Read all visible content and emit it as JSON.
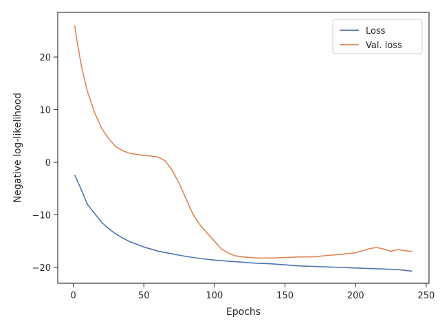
{
  "chart_data": {
    "type": "line",
    "title": "",
    "xlabel": "Epochs",
    "ylabel": "Negative log-likelihood",
    "xlim": [
      -11,
      252
    ],
    "ylim": [
      -23,
      28.5
    ],
    "xticks": [
      0,
      50,
      100,
      150,
      200,
      250
    ],
    "yticks": [
      -20,
      -10,
      0,
      10,
      20
    ],
    "xtick_labels": [
      "0",
      "50",
      "100",
      "150",
      "200",
      "250"
    ],
    "ytick_labels": [
      "−20",
      "−10",
      "0",
      "10",
      "20"
    ],
    "grid": false,
    "legend_position": "top-right",
    "series": [
      {
        "name": "Loss",
        "color": "#4c72b0",
        "points": [
          [
            1,
            -2.4
          ],
          [
            5,
            -4.8
          ],
          [
            10,
            -8.0
          ],
          [
            15,
            -9.7
          ],
          [
            20,
            -11.4
          ],
          [
            25,
            -12.6
          ],
          [
            30,
            -13.6
          ],
          [
            35,
            -14.4
          ],
          [
            40,
            -15.1
          ],
          [
            45,
            -15.6
          ],
          [
            50,
            -16.1
          ],
          [
            60,
            -16.9
          ],
          [
            70,
            -17.4
          ],
          [
            80,
            -17.9
          ],
          [
            90,
            -18.3
          ],
          [
            100,
            -18.6
          ],
          [
            110,
            -18.8
          ],
          [
            120,
            -19.0
          ],
          [
            130,
            -19.2
          ],
          [
            140,
            -19.3
          ],
          [
            150,
            -19.5
          ],
          [
            160,
            -19.7
          ],
          [
            170,
            -19.8
          ],
          [
            180,
            -19.9
          ],
          [
            190,
            -20.0
          ],
          [
            200,
            -20.1
          ],
          [
            210,
            -20.2
          ],
          [
            220,
            -20.3
          ],
          [
            230,
            -20.4
          ],
          [
            240,
            -20.7
          ]
        ]
      },
      {
        "name": "Val. loss",
        "color": "#dd8452",
        "points": [
          [
            1,
            26.0
          ],
          [
            3,
            22.5
          ],
          [
            6,
            18.0
          ],
          [
            10,
            13.5
          ],
          [
            15,
            9.5
          ],
          [
            20,
            6.5
          ],
          [
            25,
            4.5
          ],
          [
            30,
            3.0
          ],
          [
            35,
            2.2
          ],
          [
            40,
            1.7
          ],
          [
            45,
            1.5
          ],
          [
            50,
            1.3
          ],
          [
            55,
            1.2
          ],
          [
            60,
            1.0
          ],
          [
            65,
            0.3
          ],
          [
            70,
            -1.5
          ],
          [
            75,
            -4.0
          ],
          [
            80,
            -7.0
          ],
          [
            85,
            -10.0
          ],
          [
            90,
            -12.0
          ],
          [
            95,
            -13.5
          ],
          [
            100,
            -15.0
          ],
          [
            105,
            -16.5
          ],
          [
            110,
            -17.3
          ],
          [
            115,
            -17.8
          ],
          [
            120,
            -18.0
          ],
          [
            130,
            -18.2
          ],
          [
            140,
            -18.2
          ],
          [
            150,
            -18.1
          ],
          [
            160,
            -18.0
          ],
          [
            170,
            -18.0
          ],
          [
            180,
            -17.7
          ],
          [
            190,
            -17.5
          ],
          [
            200,
            -17.2
          ],
          [
            205,
            -16.8
          ],
          [
            210,
            -16.4
          ],
          [
            215,
            -16.2
          ],
          [
            220,
            -16.5
          ],
          [
            225,
            -16.9
          ],
          [
            230,
            -16.6
          ],
          [
            235,
            -16.8
          ],
          [
            240,
            -17.0
          ]
        ]
      }
    ]
  }
}
